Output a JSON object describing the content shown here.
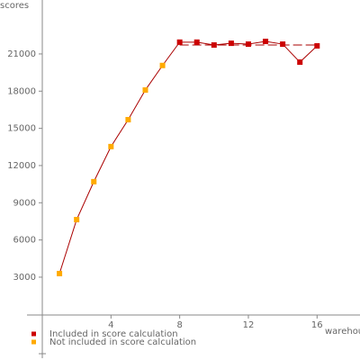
{
  "chart_data": {
    "type": "line",
    "y_label": "scores",
    "x_label": "warehouses",
    "series": [
      {
        "name": "Included in score calculation",
        "color": "#cc0000",
        "x": [
          8,
          9,
          10,
          11,
          12,
          13,
          14,
          15,
          16
        ],
        "values": [
          21950,
          21950,
          21720,
          21860,
          21790,
          22010,
          21790,
          20340,
          21650
        ]
      },
      {
        "name": "Not included in score calculation",
        "color": "#ffaa00",
        "x": [
          1,
          2,
          3,
          4,
          5,
          6,
          7
        ],
        "values": [
          3290,
          7640,
          10700,
          13530,
          15700,
          18090,
          20070
        ]
      }
    ],
    "line_color": "#aa0000",
    "score_line": 21720,
    "xlim": [
      0,
      18.5
    ],
    "xticks": [
      4,
      8,
      12,
      16
    ],
    "ylim": [
      0,
      25350
    ],
    "yticks": [
      3000,
      6000,
      9000,
      12000,
      15000,
      18000,
      21000
    ]
  }
}
